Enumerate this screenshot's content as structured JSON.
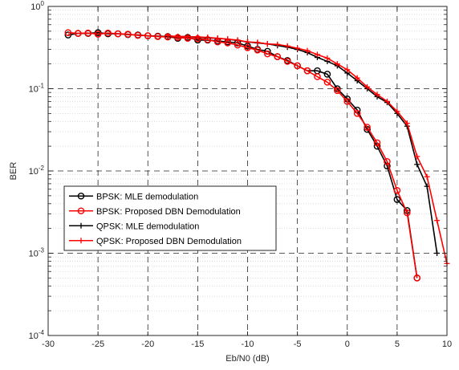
{
  "chart_data": {
    "type": "line",
    "title": "",
    "xlabel": "Eb/N0 (dB)",
    "ylabel": "BER",
    "xlim": [
      -30,
      10
    ],
    "ylim": [
      0.0001,
      1
    ],
    "y_scale": "log",
    "grid": true,
    "legend_position": "lower-left",
    "x_ticks": [
      -30,
      -25,
      -20,
      -15,
      -10,
      -5,
      0,
      5,
      10
    ],
    "x_tick_labels": [
      "-30",
      "-25",
      "-20",
      "-15",
      "-10",
      "-5",
      "0",
      "5",
      "10"
    ],
    "y_ticks": [
      0.0001,
      0.001,
      0.01,
      0.1,
      1
    ],
    "y_tick_labels": [
      {
        "base": "10",
        "exp": "-4"
      },
      {
        "base": "10",
        "exp": "-3"
      },
      {
        "base": "10",
        "exp": "-2"
      },
      {
        "base": "10",
        "exp": "-1"
      },
      {
        "base": "10",
        "exp": "0"
      }
    ],
    "series": [
      {
        "name": "BPSK: MLE demodulation",
        "color": "#000000",
        "marker": "circle",
        "x": [
          -28,
          -27,
          -26,
          -25,
          -24,
          -23,
          -22,
          -21,
          -20,
          -19,
          -18,
          -17,
          -16,
          -15,
          -14,
          -13,
          -12,
          -11,
          -10,
          -9,
          -8,
          -7,
          -6,
          -5,
          -4,
          -3,
          -2,
          -1,
          0,
          1,
          2,
          3,
          4,
          5,
          6,
          7
        ],
        "y": [
          0.45,
          0.47,
          0.47,
          0.48,
          0.465,
          0.465,
          0.455,
          0.45,
          0.44,
          0.435,
          0.43,
          0.41,
          0.42,
          0.39,
          0.39,
          0.38,
          0.37,
          0.36,
          0.33,
          0.3,
          0.285,
          0.245,
          0.22,
          0.19,
          0.165,
          0.165,
          0.15,
          0.1,
          0.075,
          0.055,
          0.032,
          0.02,
          0.0115,
          0.0045,
          0.0033,
          0.0005
        ]
      },
      {
        "name": "BPSK: Proposed DBN Demodulation",
        "color": "#ff0000",
        "marker": "circle",
        "x": [
          -28,
          -27,
          -26,
          -25,
          -24,
          -23,
          -22,
          -21,
          -20,
          -19,
          -18,
          -17,
          -16,
          -15,
          -14,
          -13,
          -12,
          -11,
          -10,
          -9,
          -8,
          -7,
          -6,
          -5,
          -4,
          -3,
          -2,
          -1,
          0,
          1,
          2,
          3,
          4,
          5,
          6,
          7
        ],
        "y": [
          0.48,
          0.47,
          0.475,
          0.46,
          0.475,
          0.465,
          0.46,
          0.445,
          0.44,
          0.43,
          0.425,
          0.42,
          0.41,
          0.405,
          0.395,
          0.37,
          0.36,
          0.34,
          0.315,
          0.295,
          0.265,
          0.245,
          0.215,
          0.19,
          0.165,
          0.14,
          0.12,
          0.095,
          0.07,
          0.05,
          0.034,
          0.022,
          0.013,
          0.0058,
          0.0031,
          0.0005
        ]
      },
      {
        "name": "QPSK: MLE demodulation",
        "color": "#000000",
        "marker": "plus",
        "x": [
          -18,
          -17,
          -16,
          -15,
          -14,
          -13,
          -12,
          -11,
          -10,
          -9,
          -8,
          -7,
          -6,
          -5,
          -4,
          -3,
          -2,
          -1,
          0,
          1,
          2,
          3,
          4,
          5,
          6,
          7,
          8,
          9
        ],
        "y": [
          0.43,
          0.43,
          0.43,
          0.42,
          0.415,
          0.41,
          0.4,
          0.385,
          0.37,
          0.36,
          0.35,
          0.335,
          0.32,
          0.3,
          0.275,
          0.24,
          0.215,
          0.19,
          0.155,
          0.125,
          0.1,
          0.08,
          0.068,
          0.05,
          0.035,
          0.012,
          0.0065,
          0.001
        ]
      },
      {
        "name": "QPSK: Proposed DBN Demodulation",
        "color": "#ff0000",
        "marker": "plus",
        "x": [
          -18,
          -17,
          -16,
          -15,
          -14,
          -13,
          -12,
          -11,
          -10,
          -9,
          -8,
          -7,
          -6,
          -5,
          -4,
          -3,
          -2,
          -1,
          0,
          1,
          2,
          3,
          4,
          5,
          6,
          7,
          8,
          9,
          10
        ],
        "y": [
          0.44,
          0.43,
          0.43,
          0.425,
          0.42,
          0.41,
          0.4,
          0.39,
          0.37,
          0.365,
          0.35,
          0.345,
          0.33,
          0.31,
          0.29,
          0.26,
          0.235,
          0.2,
          0.17,
          0.135,
          0.105,
          0.085,
          0.07,
          0.053,
          0.038,
          0.015,
          0.0085,
          0.0025,
          0.00075
        ]
      }
    ]
  }
}
